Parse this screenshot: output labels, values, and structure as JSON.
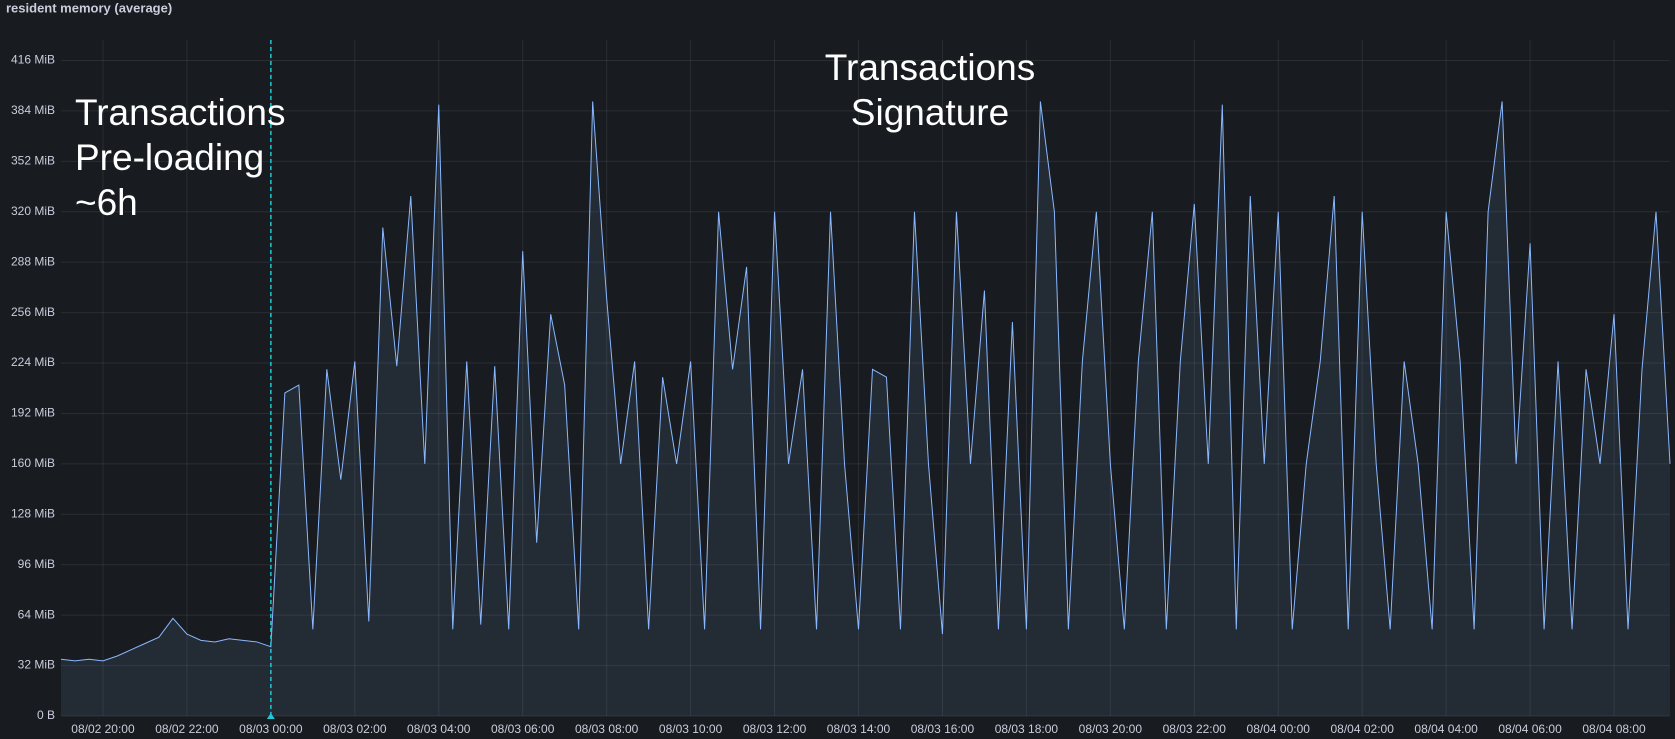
{
  "chart_data": {
    "type": "line",
    "title": "resident memory (average)",
    "x": [
      "08/02 19:00",
      "08/02 19:20",
      "08/02 19:40",
      "08/02 20:00",
      "08/02 20:20",
      "08/02 20:40",
      "08/02 21:00",
      "08/02 21:20",
      "08/02 21:40",
      "08/02 22:00",
      "08/02 22:20",
      "08/02 22:40",
      "08/02 23:00",
      "08/02 23:20",
      "08/02 23:40",
      "08/03 00:00",
      "08/03 00:20",
      "08/03 00:40",
      "08/03 01:00",
      "08/03 01:20",
      "08/03 01:40",
      "08/03 02:00",
      "08/03 02:20",
      "08/03 02:40",
      "08/03 03:00",
      "08/03 03:20",
      "08/03 03:40",
      "08/03 04:00",
      "08/03 04:20",
      "08/03 04:40",
      "08/03 05:00",
      "08/03 05:20",
      "08/03 05:40",
      "08/03 06:00",
      "08/03 06:20",
      "08/03 06:40",
      "08/03 07:00",
      "08/03 07:20",
      "08/03 07:40",
      "08/03 08:00",
      "08/03 08:20",
      "08/03 08:40",
      "08/03 09:00",
      "08/03 09:20",
      "08/03 09:40",
      "08/03 10:00",
      "08/03 10:20",
      "08/03 10:40",
      "08/03 11:00",
      "08/03 11:20",
      "08/03 11:40",
      "08/03 12:00",
      "08/03 12:20",
      "08/03 12:40",
      "08/03 13:00",
      "08/03 13:20",
      "08/03 13:40",
      "08/03 14:00",
      "08/03 14:20",
      "08/03 14:40",
      "08/03 15:00",
      "08/03 15:20",
      "08/03 15:40",
      "08/03 16:00",
      "08/03 16:20",
      "08/03 16:40",
      "08/03 17:00",
      "08/03 17:20",
      "08/03 17:40",
      "08/03 18:00",
      "08/03 18:20",
      "08/03 18:40",
      "08/03 19:00",
      "08/03 19:20",
      "08/03 19:40",
      "08/03 20:00",
      "08/03 20:20",
      "08/03 20:40",
      "08/03 21:00",
      "08/03 21:20",
      "08/03 21:40",
      "08/03 22:00",
      "08/03 22:20",
      "08/03 22:40",
      "08/03 23:00",
      "08/03 23:20",
      "08/03 23:40",
      "08/04 00:00",
      "08/04 00:20",
      "08/04 00:40",
      "08/04 01:00",
      "08/04 01:20",
      "08/04 01:40",
      "08/04 02:00",
      "08/04 02:20",
      "08/04 02:40",
      "08/04 03:00",
      "08/04 03:20",
      "08/04 03:40",
      "08/04 04:00",
      "08/04 04:20",
      "08/04 04:40",
      "08/04 05:00",
      "08/04 05:20",
      "08/04 05:40",
      "08/04 06:00",
      "08/04 06:20",
      "08/04 06:40",
      "08/04 07:00",
      "08/04 07:20",
      "08/04 07:40",
      "08/04 08:00",
      "08/04 08:20",
      "08/04 08:40",
      "08/04 09:00",
      "08/04 09:20"
    ],
    "series": [
      {
        "color": "#8ab8ff",
        "values": [
          36,
          35,
          36,
          35,
          38,
          42,
          46,
          50,
          62,
          52,
          48,
          47,
          49,
          48,
          47,
          44,
          205,
          210,
          55,
          220,
          150,
          225,
          60,
          310,
          222,
          330,
          160,
          388,
          55,
          225,
          58,
          222,
          55,
          295,
          110,
          255,
          210,
          55,
          390,
          265,
          160,
          225,
          55,
          215,
          160,
          225,
          55,
          320,
          220,
          285,
          55,
          320,
          160,
          220,
          55,
          320,
          160,
          55,
          220,
          215,
          55,
          320,
          160,
          52,
          320,
          160,
          270,
          55,
          250,
          55,
          390,
          320,
          55,
          225,
          320,
          160,
          55,
          225,
          320,
          55,
          225,
          325,
          160,
          388,
          55,
          330,
          160,
          320,
          55,
          160,
          225,
          330,
          55,
          320,
          160,
          55,
          225,
          160,
          55,
          320,
          225,
          55,
          320,
          390,
          160,
          300,
          55,
          225,
          55,
          220,
          160,
          255,
          55,
          220,
          320,
          160
        ]
      }
    ],
    "xlim": [
      "08/02 19:00",
      "08/04 09:20"
    ],
    "xticks": [
      "08/02 20:00",
      "08/02 22:00",
      "08/03 00:00",
      "08/03 02:00",
      "08/03 04:00",
      "08/03 06:00",
      "08/03 08:00",
      "08/03 10:00",
      "08/03 12:00",
      "08/03 14:00",
      "08/03 16:00",
      "08/03 18:00",
      "08/03 20:00",
      "08/03 22:00",
      "08/04 00:00",
      "08/04 02:00",
      "08/04 04:00",
      "08/04 06:00",
      "08/04 08:00"
    ],
    "ylim": [
      0,
      429
    ],
    "yticks": [
      {
        "value": 0,
        "label": "0 B"
      },
      {
        "value": 32,
        "label": "32 MiB"
      },
      {
        "value": 64,
        "label": "64 MiB"
      },
      {
        "value": 96,
        "label": "96 MiB"
      },
      {
        "value": 128,
        "label": "128 MiB"
      },
      {
        "value": 160,
        "label": "160 MiB"
      },
      {
        "value": 192,
        "label": "192 MiB"
      },
      {
        "value": 224,
        "label": "224 MiB"
      },
      {
        "value": 256,
        "label": "256 MiB"
      },
      {
        "value": 288,
        "label": "288 MiB"
      },
      {
        "value": 320,
        "label": "320 MiB"
      },
      {
        "value": 352,
        "label": "352 MiB"
      },
      {
        "value": 384,
        "label": "384 MiB"
      },
      {
        "value": 416,
        "label": "416 MiB"
      }
    ],
    "grid": true,
    "marker": {
      "x": "08/03 00:00",
      "color": "#1fc8d8"
    },
    "annotations": [
      {
        "lines": [
          "Transactions",
          "Pre-loading",
          "~6h"
        ]
      },
      {
        "lines": [
          "Transactions",
          "Signature"
        ]
      }
    ]
  }
}
